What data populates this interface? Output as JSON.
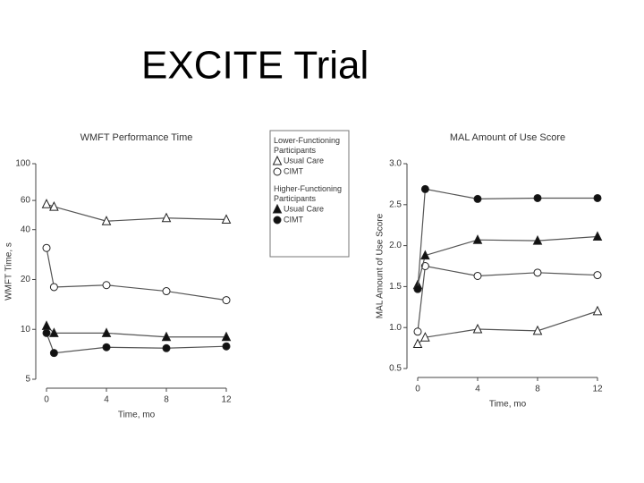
{
  "title": "EXCITE Trial",
  "chart_data": [
    {
      "type": "line",
      "title": "WMFT Performance Time",
      "xlabel": "Time, mo",
      "ylabel": "WMFT Time, s",
      "log_y": true,
      "xlim": [
        0,
        12
      ],
      "xticks": [
        0,
        4,
        8,
        12
      ],
      "ylim": [
        5,
        100
      ],
      "yticks": [
        5,
        10,
        20,
        40,
        60,
        100
      ],
      "x": [
        0,
        0.5,
        4,
        8,
        12
      ],
      "legend_groups": [
        "Lower-Functioning Participants",
        "Higher-Functioning Participants"
      ],
      "series": [
        {
          "name": "Usual Care",
          "marker": "open-triangle",
          "color": "#555555",
          "values": [
            57,
            55,
            45,
            47,
            46
          ]
        },
        {
          "name": "CIMT",
          "marker": "open-circle",
          "color": "#555555",
          "values": [
            31,
            18,
            18.5,
            17,
            15
          ]
        },
        {
          "name": "Usual Care",
          "marker": "filled-triangle",
          "color": "#555555",
          "values": [
            10.5,
            9.5,
            9.5,
            9,
            9
          ]
        },
        {
          "name": "CIMT",
          "marker": "filled-circle",
          "color": "#555555",
          "values": [
            9.5,
            7.2,
            7.8,
            7.7,
            7.9
          ]
        }
      ]
    },
    {
      "type": "line",
      "title": "MAL Amount of Use Score",
      "xlabel": "Time, mo",
      "ylabel": "MAL Amount of Use Score",
      "log_y": false,
      "xlim": [
        0,
        12
      ],
      "xticks": [
        0,
        4,
        8,
        12
      ],
      "ylim": [
        0.5,
        3.0
      ],
      "yticks": [
        0.5,
        {
          "value": 1,
          "label": "1.0"
        },
        1.5,
        {
          "value": 2,
          "label": "2.0"
        },
        2.5,
        {
          "value": 3,
          "label": "3.0"
        }
      ],
      "x": [
        0,
        0.5,
        4,
        8,
        12
      ],
      "series": [
        {
          "marker": "open-triangle",
          "color": "#555555",
          "values": [
            0.8,
            0.88,
            0.98,
            0.96,
            1.2
          ]
        },
        {
          "marker": "open-circle",
          "color": "#555555",
          "values": [
            0.95,
            1.75,
            1.63,
            1.67,
            1.64
          ]
        },
        {
          "marker": "filled-triangle",
          "color": "#555555",
          "values": [
            1.52,
            1.88,
            2.07,
            2.06,
            2.11
          ]
        },
        {
          "marker": "filled-circle",
          "color": "#555555",
          "values": [
            1.47,
            2.69,
            2.57,
            2.58,
            2.58
          ]
        }
      ]
    }
  ]
}
